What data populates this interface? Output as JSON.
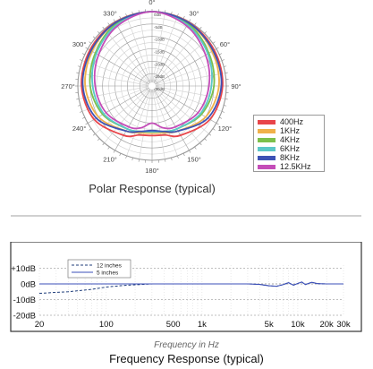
{
  "polar": {
    "caption": "Polar Response (typical)",
    "angle_labels": [
      {
        "deg": 0,
        "text": "0°"
      },
      {
        "deg": 30,
        "text": "30°"
      },
      {
        "deg": 60,
        "text": "60°"
      },
      {
        "deg": 90,
        "text": "90°"
      },
      {
        "deg": 120,
        "text": "120°"
      },
      {
        "deg": 150,
        "text": "150°"
      },
      {
        "deg": 180,
        "text": "180°"
      },
      {
        "deg": 210,
        "text": "210°"
      },
      {
        "deg": 240,
        "text": "240°"
      },
      {
        "deg": 270,
        "text": "270°"
      },
      {
        "deg": 300,
        "text": "300°"
      },
      {
        "deg": 330,
        "text": "330°"
      }
    ],
    "db_labels": [
      "0dB",
      "-5dB",
      "-10dB",
      "-15dB",
      "-20dB",
      "-25dB",
      "-30dB"
    ]
  },
  "freq": {
    "xlabel": "Frequency in Hz",
    "title": "Frequency Response (typical)",
    "legend": [
      {
        "name": "12 inches",
        "color": "#1f3d7a",
        "dash": true
      },
      {
        "name": "5 inches",
        "color": "#3b4fb8",
        "dash": false
      }
    ],
    "y_ticks": [
      {
        "v": 10,
        "text": "+10dB"
      },
      {
        "v": 0,
        "text": "0dB"
      },
      {
        "v": -10,
        "text": "-10dB"
      },
      {
        "v": -20,
        "text": "-20dB"
      }
    ],
    "x_ticks": [
      {
        "v": 20,
        "text": "20"
      },
      {
        "v": 100,
        "text": "100"
      },
      {
        "v": 500,
        "text": "500"
      },
      {
        "v": 1000,
        "text": "1k"
      },
      {
        "v": 5000,
        "text": "5k"
      },
      {
        "v": 10000,
        "text": "10k"
      },
      {
        "v": 20000,
        "text": "20k"
      },
      {
        "v": 30000,
        "text": "30k"
      }
    ]
  },
  "chart_data": [
    {
      "type": "polar",
      "title": "Polar Response (typical)",
      "r_range_db": [
        -30,
        0
      ],
      "theta_labels_deg": [
        0,
        30,
        60,
        90,
        120,
        150,
        180,
        210,
        240,
        270,
        300,
        330
      ],
      "legend_position": "right",
      "series": [
        {
          "name": "400Hz",
          "color": "#e8454a",
          "theta": [
            0,
            30,
            60,
            90,
            120,
            150,
            165,
            180,
            195,
            210,
            240,
            270,
            300,
            330
          ],
          "r_db": [
            0,
            -0.3,
            -1,
            -1.5,
            -3,
            -7,
            -9.5,
            -10,
            -9.5,
            -7,
            -3,
            -1.5,
            -1,
            -0.3
          ]
        },
        {
          "name": "1KHz",
          "color": "#f0b14a",
          "theta": [
            0,
            30,
            60,
            90,
            120,
            150,
            165,
            180,
            195,
            210,
            240,
            270,
            300,
            330
          ],
          "r_db": [
            0,
            -0.5,
            -2,
            -3,
            -5,
            -9,
            -10.5,
            -11,
            -10.5,
            -9,
            -5,
            -3,
            -2,
            -0.5
          ]
        },
        {
          "name": "4KHz",
          "color": "#7cc04b",
          "theta": [
            0,
            30,
            60,
            90,
            120,
            150,
            165,
            180,
            195,
            210,
            240,
            270,
            300,
            330
          ],
          "r_db": [
            0,
            -1,
            -3.5,
            -5,
            -7,
            -10,
            -11,
            -11.5,
            -11,
            -10,
            -7,
            -5,
            -3.5,
            -1
          ]
        },
        {
          "name": "6KHz",
          "color": "#5bc8c8",
          "theta": [
            0,
            30,
            60,
            90,
            120,
            150,
            165,
            180,
            195,
            210,
            240,
            270,
            300,
            330
          ],
          "r_db": [
            0,
            -1.5,
            -4,
            -6,
            -7.5,
            -10,
            -11,
            -11.5,
            -11,
            -10,
            -7.5,
            -6,
            -4,
            -1.5
          ]
        },
        {
          "name": "8KHz",
          "color": "#3d52b5",
          "theta": [
            0,
            30,
            60,
            90,
            120,
            150,
            165,
            180,
            195,
            210,
            240,
            270,
            300,
            330
          ],
          "r_db": [
            0,
            -0.5,
            -1.5,
            -2,
            -4,
            -9,
            -11,
            -12,
            -11,
            -9,
            -4,
            -2,
            -1.5,
            -0.5
          ]
        },
        {
          "name": "12.5KHz",
          "color": "#c44db8",
          "theta": [
            0,
            30,
            60,
            90,
            120,
            150,
            165,
            180,
            195,
            210,
            240,
            270,
            300,
            330
          ],
          "r_db": [
            0,
            -2,
            -5,
            -7,
            -8.5,
            -11,
            -12.5,
            -15,
            -12.5,
            -11,
            -8.5,
            -7,
            -5,
            -2
          ]
        }
      ]
    },
    {
      "type": "line",
      "title": "Frequency Response (typical)",
      "xlabel": "Frequency in Hz",
      "ylabel": "",
      "xscale": "log",
      "xlim": [
        20,
        30000
      ],
      "ylim": [
        -20,
        13
      ],
      "grid": true,
      "legend_position": "top-left",
      "series": [
        {
          "name": "12 inches",
          "x": [
            20,
            40,
            70,
            100,
            150,
            300,
            1000,
            3000,
            4000,
            5000,
            6000,
            7000,
            8000,
            9000,
            10000,
            11000,
            12000,
            14000,
            16000,
            20000,
            30000
          ],
          "y": [
            -6,
            -5,
            -3.5,
            -2,
            -1,
            0,
            0,
            0,
            -0.3,
            -1.2,
            -1.5,
            -0.5,
            0.8,
            -0.8,
            0.3,
            1.2,
            -0.4,
            1.0,
            0.2,
            0,
            0
          ]
        },
        {
          "name": "5 inches",
          "x": [
            20,
            100,
            300,
            1000,
            3000,
            4000,
            5000,
            6000,
            7000,
            8000,
            9000,
            10000,
            11000,
            12000,
            14000,
            16000,
            20000,
            30000
          ],
          "y": [
            0,
            0,
            0,
            0,
            0,
            -0.3,
            -1.2,
            -1.5,
            -0.5,
            0.8,
            -0.8,
            0.3,
            1.2,
            -0.4,
            1.0,
            0.2,
            0,
            0
          ]
        }
      ]
    }
  ]
}
